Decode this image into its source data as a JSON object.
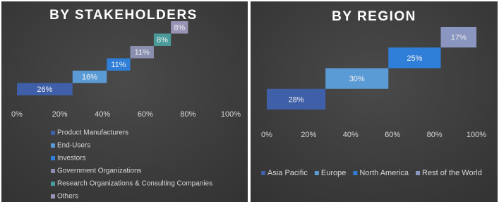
{
  "chart_data": [
    {
      "type": "waterfall",
      "title": "BY STAKEHOLDERS",
      "categories": [
        "Product Manufacturers",
        "End-Users",
        "Investors",
        "Government Organizations",
        "Research Organizations & Consulting Companies",
        "Others"
      ],
      "values": [
        26,
        16,
        11,
        11,
        8,
        8
      ],
      "value_labels": [
        "26%",
        "16%",
        "11%",
        "11%",
        "8%",
        "8%"
      ],
      "colors": [
        "#3f5fa8",
        "#5b9bd5",
        "#2f7ed8",
        "#8a8fb0",
        "#4a9a9a",
        "#9a93b5"
      ],
      "xlim": [
        0,
        100
      ],
      "xticks": [
        {
          "value": 0,
          "label": "0%"
        },
        {
          "value": 20,
          "label": "20%"
        },
        {
          "value": 40,
          "label": "40%"
        },
        {
          "value": 60,
          "label": "60%"
        },
        {
          "value": 80,
          "label": "80%"
        },
        {
          "value": 100,
          "label": "100%"
        }
      ]
    },
    {
      "type": "waterfall",
      "title": "BY REGION",
      "categories": [
        "Asia Pacific",
        "Europe",
        "North America",
        "Rest of the World"
      ],
      "values": [
        28,
        30,
        25,
        17
      ],
      "value_labels": [
        "28%",
        "30%",
        "25%",
        "17%"
      ],
      "colors": [
        "#3f5fa8",
        "#5b9bd5",
        "#2f7ed8",
        "#8a95c0"
      ],
      "xlim": [
        0,
        100
      ],
      "xticks": [
        {
          "value": 0,
          "label": "0%"
        },
        {
          "value": 20,
          "label": "20%"
        },
        {
          "value": 40,
          "label": "40%"
        },
        {
          "value": 60,
          "label": "60%"
        },
        {
          "value": 80,
          "label": "80%"
        },
        {
          "value": 100,
          "label": "100%"
        }
      ]
    }
  ]
}
